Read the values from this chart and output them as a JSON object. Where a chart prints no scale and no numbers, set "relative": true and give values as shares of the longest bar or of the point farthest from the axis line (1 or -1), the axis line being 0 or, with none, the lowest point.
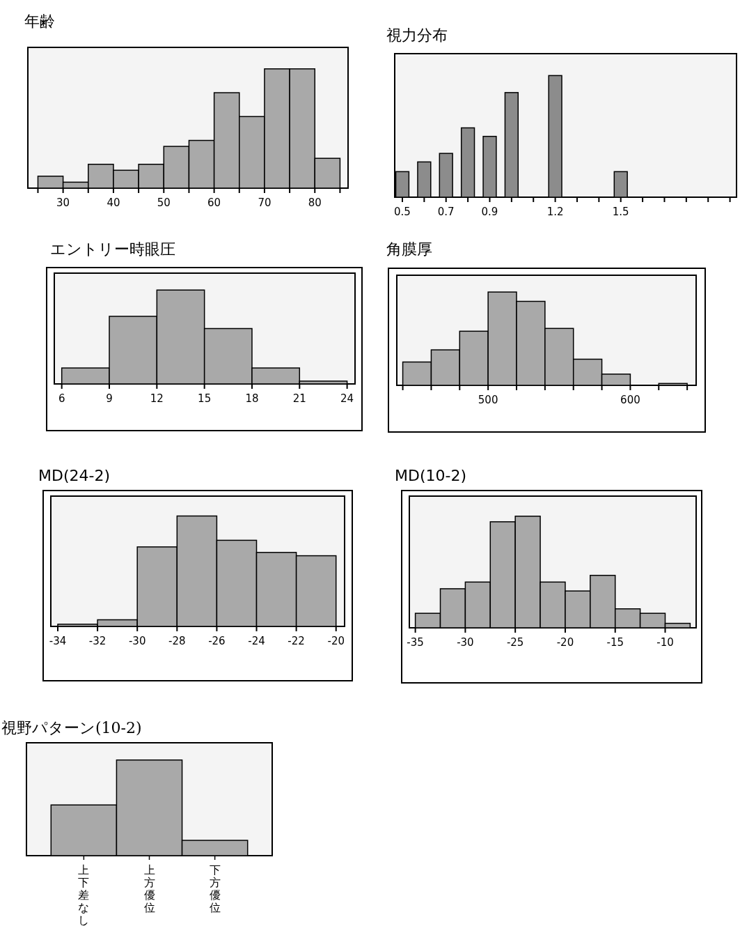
{
  "chart_data": [
    {
      "type": "bar",
      "title": "年齢",
      "relative": true,
      "color": "#a9a9a9",
      "x": [
        27.5,
        32.5,
        37.5,
        42.5,
        47.5,
        52.5,
        57.5,
        62.5,
        67.5,
        72.5,
        77.5,
        82.5
      ],
      "values": [
        0.1,
        0.05,
        0.2,
        0.15,
        0.2,
        0.35,
        0.4,
        0.8,
        0.6,
        1,
        1,
        0.25
      ],
      "xlim": [
        23,
        86.6
      ],
      "xticks": [
        {
          "value": 25,
          "label": null
        },
        30,
        {
          "value": 35,
          "label": null
        },
        40,
        {
          "value": 45,
          "label": null
        },
        50,
        {
          "value": 55,
          "label": null
        },
        60,
        {
          "value": 65,
          "label": null
        },
        70,
        {
          "value": 75,
          "label": null
        },
        80,
        {
          "value": 85,
          "label": null
        }
      ]
    },
    {
      "type": "bar",
      "title": "視力分布",
      "relative": true,
      "color": "#8c8c8c",
      "x": [
        0.5,
        0.6,
        0.7,
        0.8,
        0.9,
        1.0,
        1.2,
        1.5
      ],
      "values": [
        0.21,
        0.29,
        0.36,
        0.57,
        0.5,
        0.86,
        1,
        0.21
      ],
      "xlim": [
        0.465,
        2.03
      ],
      "xticks": [
        0.5,
        {
          "value": 0.6,
          "label": null
        },
        0.7,
        {
          "value": 0.8,
          "label": null
        },
        0.9,
        {
          "value": 1.0,
          "label": null
        },
        {
          "value": 1.1,
          "label": null
        },
        1.2,
        {
          "value": 1.3,
          "label": null
        },
        {
          "value": 1.4,
          "label": null
        },
        1.5,
        {
          "value": 1.6,
          "label": null
        },
        {
          "value": 1.7,
          "label": null
        },
        {
          "value": 1.8,
          "label": null
        },
        {
          "value": 1.9,
          "label": null
        },
        {
          "value": 2.0,
          "label": null
        }
      ]
    },
    {
      "type": "bar",
      "title": "エントリー時眼圧",
      "relative": true,
      "color": "#a9a9a9",
      "x": [
        7.5,
        10.5,
        13.5,
        16.5,
        19.5,
        22.5
      ],
      "values": [
        0.17,
        0.72,
        1,
        0.59,
        0.17,
        0.03
      ],
      "xlim": [
        5.53,
        24.5
      ],
      "xticks": [
        6,
        9,
        12,
        15,
        18,
        21,
        24
      ]
    },
    {
      "type": "bar",
      "title": "角膜厚",
      "relative": true,
      "color": "#a9a9a9",
      "x": [
        450,
        470,
        490,
        510,
        530,
        550,
        570,
        590,
        610,
        630
      ],
      "values": [
        0.25,
        0.38,
        0.58,
        1,
        0.9,
        0.61,
        0.28,
        0.12,
        0,
        0.02
      ],
      "xlim": [
        435.8,
        646.3
      ],
      "xticks": [
        {
          "value": 440,
          "label": null
        },
        {
          "value": 460,
          "label": null
        },
        {
          "value": 480,
          "label": null
        },
        500,
        {
          "value": 520,
          "label": null
        },
        {
          "value": 540,
          "label": null
        },
        {
          "value": 560,
          "label": null
        },
        {
          "value": 580,
          "label": null
        },
        600,
        {
          "value": 620,
          "label": null
        },
        {
          "value": 640,
          "label": null
        }
      ]
    },
    {
      "type": "bar",
      "title": "MD(24-2)",
      "relative": true,
      "color": "#a9a9a9",
      "x": [
        -33,
        -31,
        -29,
        -27,
        -25,
        -23,
        -21
      ],
      "values": [
        0.02,
        0.06,
        0.72,
        1,
        0.78,
        0.67,
        0.64
      ],
      "xlim": [
        -34.35,
        -19.57
      ],
      "xticks": [
        -34,
        -32,
        -30,
        -28,
        -26,
        -24,
        -22,
        -20
      ]
    },
    {
      "type": "bar",
      "title": "MD(10-2)",
      "relative": true,
      "color": "#a9a9a9",
      "x": [
        -33.75,
        -31.25,
        -28.75,
        -26.25,
        -23.75,
        -21.25,
        -18.75,
        -16.25,
        -13.75,
        -11.25,
        -8.75
      ],
      "values": [
        0.13,
        0.35,
        0.41,
        0.95,
        1,
        0.41,
        0.33,
        0.47,
        0.17,
        0.13,
        0.04
      ],
      "xlim": [
        -35.6,
        -6.9
      ],
      "xticks": [
        -35,
        -30,
        -25,
        -20,
        -15,
        -10
      ]
    },
    {
      "type": "bar",
      "title": "視野パターン(10-2)",
      "relative": true,
      "color": "#a9a9a9",
      "categories": [
        "上下差なし",
        "上方優位",
        "下方優位"
      ],
      "values": [
        0.53,
        1,
        0.16
      ]
    }
  ]
}
